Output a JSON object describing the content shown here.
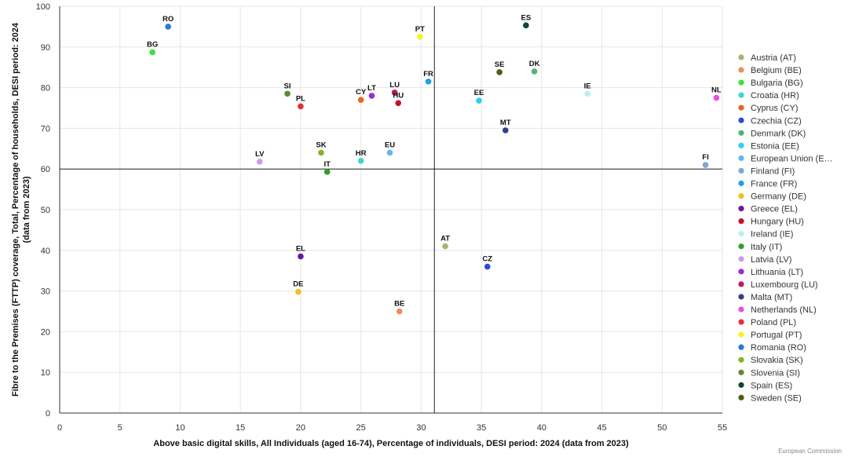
{
  "chart_data": {
    "type": "scatter",
    "xlabel": "Above basic digital skills, All Individuals (aged 16-74), Percentage of individuals, DESI period: 2024 (data from 2023)",
    "ylabel_lines": [
      "Fibre to the Premises (FTTP) coverage, Total, Percentage of households, DESI period: 2024",
      "(data from 2023)"
    ],
    "xlim": [
      0,
      55
    ],
    "ylim": [
      0,
      100
    ],
    "x_ticks": [
      0,
      5,
      10,
      15,
      20,
      25,
      30,
      35,
      40,
      45,
      50,
      55
    ],
    "y_ticks": [
      0,
      10,
      20,
      30,
      40,
      50,
      60,
      70,
      80,
      90,
      100
    ],
    "reference_lines": {
      "x": 31.1,
      "y": 60
    },
    "points": [
      {
        "code": "AT",
        "legend": "Austria (AT)",
        "x": 32.0,
        "y": 41.0,
        "color": "#a9b36a"
      },
      {
        "code": "BE",
        "legend": "Belgium (BE)",
        "x": 28.2,
        "y": 25.0,
        "color": "#f08c5a"
      },
      {
        "code": "BG",
        "legend": "Bulgaria (BG)",
        "x": 7.7,
        "y": 88.7,
        "color": "#3be23b"
      },
      {
        "code": "HR",
        "legend": "Croatia (HR)",
        "x": 25.0,
        "y": 62.0,
        "color": "#3fd6cf"
      },
      {
        "code": "CY",
        "legend": "Cyprus (CY)",
        "x": 25.0,
        "y": 77.0,
        "color": "#e8641f"
      },
      {
        "code": "CZ",
        "legend": "Czechia (CZ)",
        "x": 35.5,
        "y": 36.0,
        "color": "#2b4ad9"
      },
      {
        "code": "DK",
        "legend": "Denmark (DK)",
        "x": 39.4,
        "y": 84.0,
        "color": "#4cb870"
      },
      {
        "code": "EE",
        "legend": "Estonia (EE)",
        "x": 34.8,
        "y": 76.8,
        "color": "#29d2ec"
      },
      {
        "code": "EU",
        "legend": "European Union (E…",
        "x": 27.4,
        "y": 64.0,
        "color": "#62b8ea"
      },
      {
        "code": "FI",
        "legend": "Finland (FI)",
        "x": 53.6,
        "y": 61.0,
        "color": "#7ea6d6"
      },
      {
        "code": "FR",
        "legend": "France (FR)",
        "x": 30.6,
        "y": 81.5,
        "color": "#1fa0e6"
      },
      {
        "code": "DE",
        "legend": "Germany (DE)",
        "x": 19.8,
        "y": 29.8,
        "color": "#f3be1e"
      },
      {
        "code": "EL",
        "legend": "Greece (EL)",
        "x": 20.0,
        "y": 38.5,
        "color": "#6a16a8"
      },
      {
        "code": "HU",
        "legend": "Hungary (HU)",
        "x": 28.1,
        "y": 76.2,
        "color": "#c8102e"
      },
      {
        "code": "IE",
        "legend": "Ireland (IE)",
        "x": 43.8,
        "y": 78.5,
        "color": "#b8efee"
      },
      {
        "code": "IT",
        "legend": "Italy (IT)",
        "x": 22.2,
        "y": 59.3,
        "color": "#2ca02c"
      },
      {
        "code": "LV",
        "legend": "Latvia (LV)",
        "x": 16.6,
        "y": 61.8,
        "color": "#c99be6"
      },
      {
        "code": "LT",
        "legend": "Lithuania (LT)",
        "x": 25.9,
        "y": 78.0,
        "color": "#9b2bd6"
      },
      {
        "code": "LU",
        "legend": "Luxembourg (LU)",
        "x": 27.8,
        "y": 78.8,
        "color": "#c2185b"
      },
      {
        "code": "MT",
        "legend": "Malta (MT)",
        "x": 37.0,
        "y": 69.5,
        "color": "#363f8a"
      },
      {
        "code": "NL",
        "legend": "Netherlands (NL)",
        "x": 54.5,
        "y": 77.5,
        "color": "#e94ee6"
      },
      {
        "code": "PL",
        "legend": "Poland (PL)",
        "x": 20.0,
        "y": 75.4,
        "color": "#ec2b35"
      },
      {
        "code": "PT",
        "legend": "Portugal (PT)",
        "x": 29.9,
        "y": 92.5,
        "color": "#f5f51e"
      },
      {
        "code": "RO",
        "legend": "Romania (RO)",
        "x": 9.0,
        "y": 95.0,
        "color": "#2a78db"
      },
      {
        "code": "SK",
        "legend": "Slovakia (SK)",
        "x": 21.7,
        "y": 64.0,
        "color": "#86b322"
      },
      {
        "code": "SI",
        "legend": "Slovenia (SI)",
        "x": 18.9,
        "y": 78.5,
        "color": "#5b8a35"
      },
      {
        "code": "ES",
        "legend": "Spain (ES)",
        "x": 38.7,
        "y": 95.3,
        "color": "#0d4a2f"
      },
      {
        "code": "SE",
        "legend": "Sweden (SE)",
        "x": 36.5,
        "y": 83.8,
        "color": "#4f5d13"
      }
    ]
  },
  "credit": "European Commission"
}
